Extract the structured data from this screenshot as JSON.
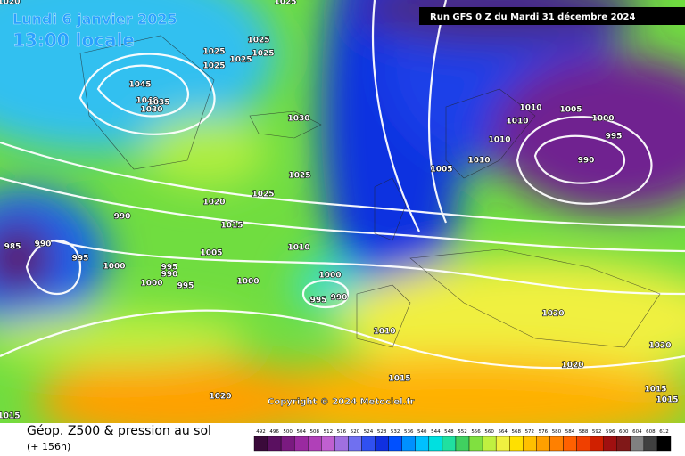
{
  "header": {
    "date": "Lundi 6 janvier 2025",
    "time": "13:00 locale",
    "run": "Run GFS 0 Z du Mardi 31 décembre 2024"
  },
  "footer": {
    "title": "Géop. Z500 & pression au sol",
    "lead": "(+ 156h)",
    "copyright": "Copyright © 2024 Metociel.fr"
  },
  "isobar_labels": [
    "1025",
    "1025",
    "1025",
    "1025",
    "1025",
    "1025",
    "1045",
    "1040",
    "1035",
    "1030",
    "1030",
    "1010",
    "1010",
    "1005",
    "1000",
    "995",
    "990",
    "1010",
    "1010",
    "1005",
    "1025",
    "1025",
    "1020",
    "1015",
    "1010",
    "1005",
    "990",
    "985",
    "990",
    "995",
    "1000",
    "995",
    "990",
    "995",
    "1000",
    "1000",
    "1000",
    "995",
    "990",
    "1020",
    "1020",
    "1010",
    "1020",
    "1015",
    "1015",
    "1015",
    "1020",
    "1015",
    "1020"
  ],
  "colorbar": {
    "ticks": [
      492,
      496,
      500,
      504,
      508,
      512,
      516,
      520,
      524,
      528,
      532,
      536,
      540,
      544,
      548,
      552,
      556,
      560,
      564,
      568,
      572,
      576,
      580,
      584,
      588,
      592,
      596,
      600,
      604,
      608,
      612
    ],
    "colors": [
      "#3a0a3a",
      "#5a1060",
      "#7a1a80",
      "#9a2aa0",
      "#b040b8",
      "#c060d0",
      "#a070e0",
      "#7070f0",
      "#3050f0",
      "#1030e0",
      "#0050ff",
      "#0090ff",
      "#00c0ff",
      "#00e0e0",
      "#20e0a0",
      "#40d060",
      "#80e040",
      "#c0f040",
      "#f0f040",
      "#ffe000",
      "#ffc000",
      "#ffa000",
      "#ff8000",
      "#ff6000",
      "#f04000",
      "#d02000",
      "#a01010",
      "#801818",
      "#808080",
      "#404040",
      "#000000"
    ]
  }
}
